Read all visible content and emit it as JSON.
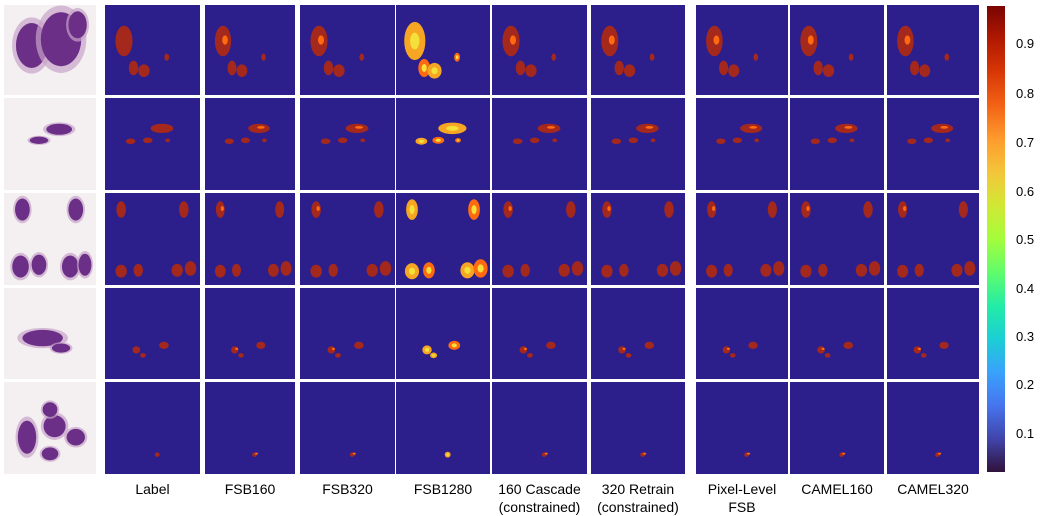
{
  "columns": [
    "",
    "Label",
    "FSB160",
    "FSB320",
    "FSB1280",
    "160 Cascade\n(constrained)",
    "320 Retrain\n(constrained)",
    "Pixel-Level\nFSB",
    "CAMEL160",
    "CAMEL320"
  ],
  "colorbar": {
    "ticks": [
      "0.9",
      "0.8",
      "0.7",
      "0.6",
      "0.5",
      "0.4",
      "0.3",
      "0.2",
      "0.1"
    ],
    "colors": [
      "#30123b",
      "#4145ab",
      "#4675ed",
      "#39a2fc",
      "#1bcfd4",
      "#24eca6",
      "#61fc6c",
      "#a4fc3b",
      "#d1e834",
      "#f3c63a",
      "#fe9b2d",
      "#f36315",
      "#d93806",
      "#b11901",
      "#7a0402"
    ]
  },
  "panel_colors": {
    "background": "#2c1f8c",
    "tissue": "#a5281c",
    "hot": "#f6a622",
    "warm": "#ff6a10",
    "yellow": "#f3e03a",
    "thumb_bg": "#f4f0f1",
    "stain_dark": "#6b2f87",
    "stain_light": "#c7a3c9"
  }
}
